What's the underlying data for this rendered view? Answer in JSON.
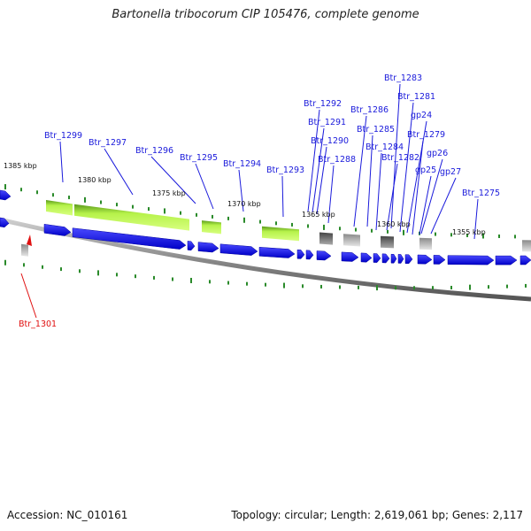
{
  "title": "Bartonella tribocorum CIP 105476, complete genome",
  "footer": {
    "accession": "Accession: NC_010161",
    "summary": "Topology: circular; Length: 2,619,061 bp; Genes: 2,117"
  },
  "scale_labels": [
    "1385 kbp",
    "1380 kbp",
    "1375 kbp",
    "1370 kbp",
    "1365 kbp",
    "1360 kbp",
    "1355 kbp"
  ],
  "gene_labels": [
    "Btr_1299",
    "Btr_1297",
    "Btr_1296",
    "Btr_1295",
    "Btr_1294",
    "Btr_1293",
    "Btr_1292",
    "Btr_1291",
    "Btr_1290",
    "Btr_1288",
    "Btr_1286",
    "Btr_1285",
    "Btr_1284",
    "Btr_1283",
    "Btr_1282",
    "Btr_1281",
    "gp24",
    "Btr_1279",
    "gp26",
    "gp25",
    "gp27",
    "Btr_1275",
    "Btr_1301"
  ],
  "colors": {
    "cds": "#1010e6",
    "rna": "#99ee33",
    "pseudo": "#9a9a9a",
    "backbone": "#888888",
    "tick": "#2a8a2a",
    "label": "#1a1adb",
    "highlight": "#e01010"
  }
}
